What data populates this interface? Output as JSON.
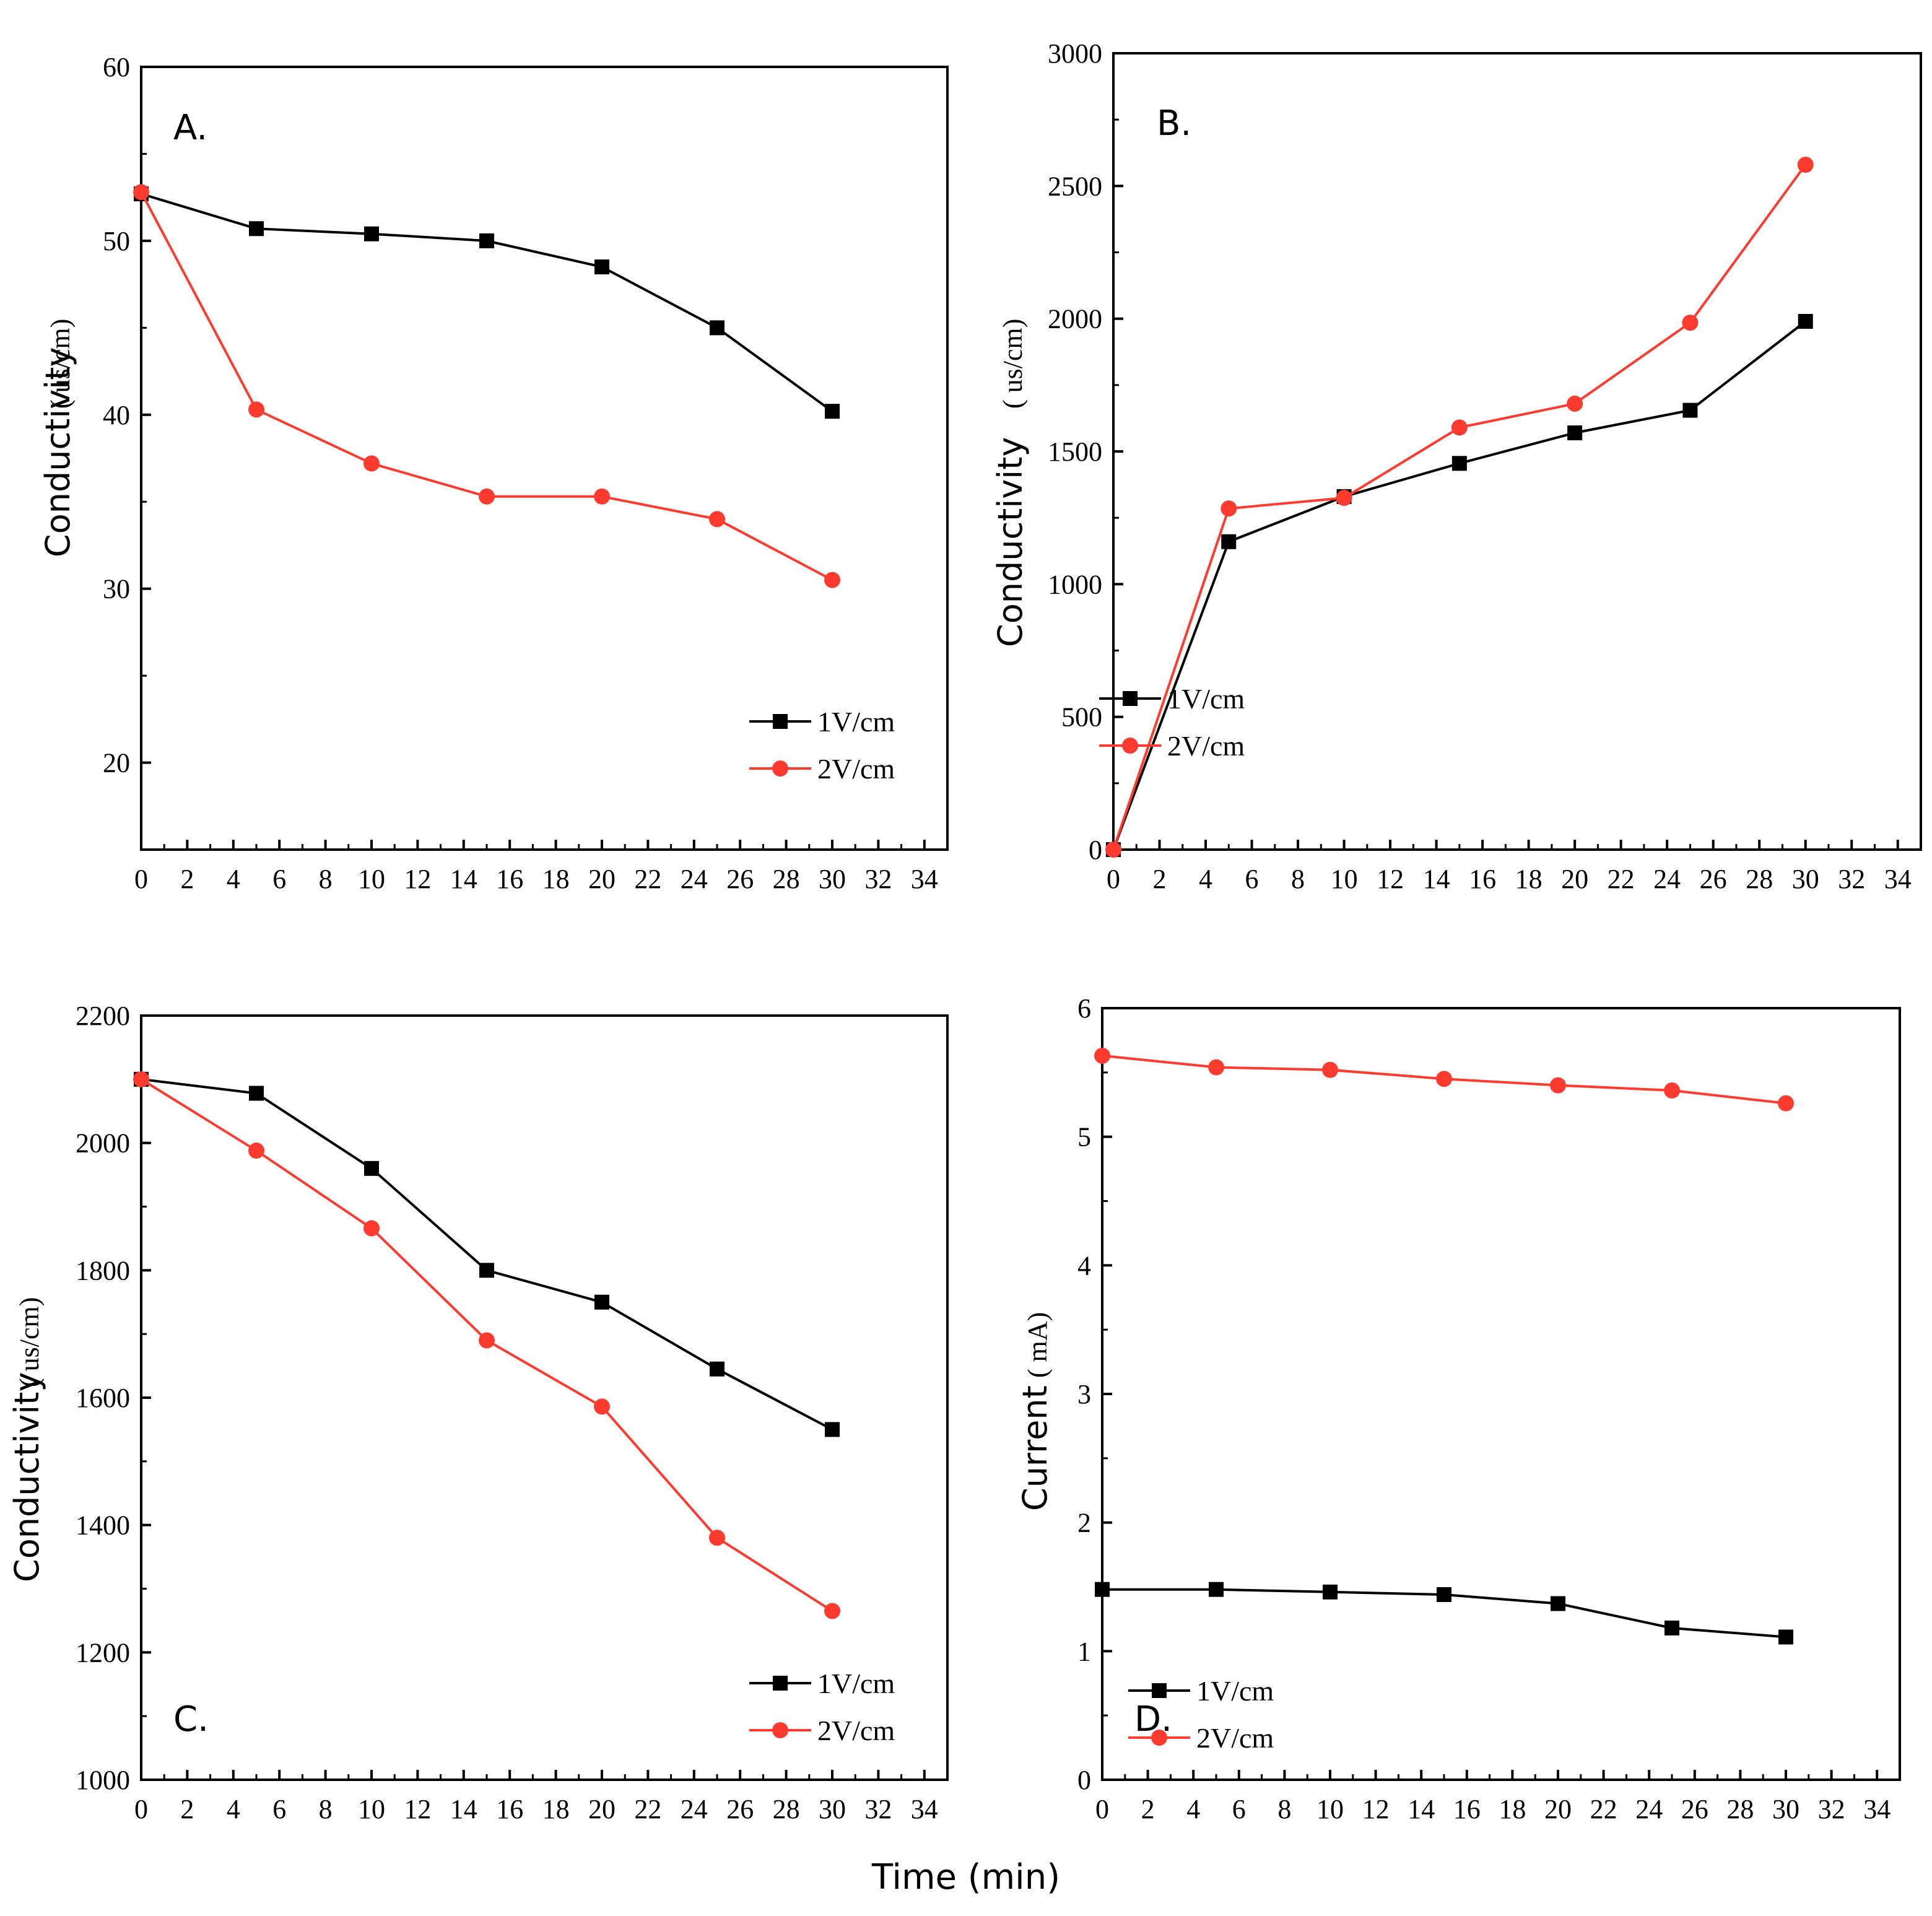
{
  "colors": {
    "series_1v": "#000000",
    "series_2v": "#ff3b30",
    "axis": "#000000"
  },
  "shared_xlabel": "Time (min)",
  "chart_data": [
    {
      "id": "A",
      "type": "line",
      "panel_label": "A.",
      "ylabel": "Conductivity",
      "yunit": "( us/cm)",
      "xlim": [
        0,
        35
      ],
      "ylim": [
        15,
        60
      ],
      "xticks": [
        0,
        2,
        4,
        6,
        8,
        10,
        12,
        14,
        16,
        18,
        20,
        22,
        24,
        26,
        28,
        30,
        32,
        34
      ],
      "yticks": [
        20,
        30,
        40,
        50,
        60
      ],
      "legend_position": "bottom-right",
      "series": [
        {
          "name": "1V/cm",
          "marker": "square",
          "color": "#000000",
          "x": [
            0,
            5,
            10,
            15,
            20,
            25,
            30
          ],
          "y": [
            52.7,
            50.7,
            50.4,
            50.0,
            48.5,
            45.0,
            40.2
          ]
        },
        {
          "name": "2V/cm",
          "marker": "circle",
          "color": "#ff3b30",
          "x": [
            0,
            5,
            10,
            15,
            20,
            25,
            30
          ],
          "y": [
            52.8,
            40.3,
            37.2,
            35.3,
            35.3,
            34.0,
            30.5
          ]
        }
      ]
    },
    {
      "id": "B",
      "type": "line",
      "panel_label": "B.",
      "ylabel": "Conductivity",
      "yunit": "( us/cm)",
      "xlim": [
        0,
        35
      ],
      "ylim": [
        0,
        3000
      ],
      "xticks": [
        0,
        2,
        4,
        6,
        8,
        10,
        12,
        14,
        16,
        18,
        20,
        22,
        24,
        26,
        28,
        30,
        32,
        34
      ],
      "yticks": [
        0,
        500,
        1000,
        1500,
        2000,
        2500,
        3000
      ],
      "legend_position": "middle-right",
      "series": [
        {
          "name": "1V/cm",
          "marker": "square",
          "color": "#000000",
          "x": [
            0,
            5,
            10,
            15,
            20,
            25,
            30
          ],
          "y": [
            0,
            1160,
            1330,
            1455,
            1570,
            1655,
            1990
          ]
        },
        {
          "name": "2V/cm",
          "marker": "circle",
          "color": "#ff3b30",
          "x": [
            0,
            5,
            10,
            15,
            20,
            25,
            30
          ],
          "y": [
            0,
            1285,
            1325,
            1590,
            1680,
            1985,
            2580
          ]
        }
      ]
    },
    {
      "id": "C",
      "type": "line",
      "panel_label": "C.",
      "ylabel": "Conductivity",
      "yunit": "( us/cm)",
      "xlim": [
        0,
        35
      ],
      "ylim": [
        1000,
        2200
      ],
      "xticks": [
        0,
        2,
        4,
        6,
        8,
        10,
        12,
        14,
        16,
        18,
        20,
        22,
        24,
        26,
        28,
        30,
        32,
        34
      ],
      "yticks": [
        1000,
        1200,
        1400,
        1600,
        1800,
        2000,
        2200
      ],
      "legend_position": "bottom-right",
      "series": [
        {
          "name": "1V/cm",
          "marker": "square",
          "color": "#000000",
          "x": [
            0,
            5,
            10,
            15,
            20,
            25,
            30
          ],
          "y": [
            2100,
            2078,
            1960,
            1800,
            1750,
            1645,
            1550
          ]
        },
        {
          "name": "2V/cm",
          "marker": "circle",
          "color": "#ff3b30",
          "x": [
            0,
            5,
            10,
            15,
            20,
            25,
            30
          ],
          "y": [
            2100,
            1988,
            1866,
            1690,
            1586,
            1380,
            1265
          ]
        }
      ]
    },
    {
      "id": "D",
      "type": "line",
      "panel_label": "D.",
      "ylabel": "Current",
      "yunit": "( mA)",
      "xlim": [
        0,
        35
      ],
      "ylim": [
        0,
        6
      ],
      "xticks": [
        0,
        2,
        4,
        6,
        8,
        10,
        12,
        14,
        16,
        18,
        20,
        22,
        24,
        26,
        28,
        30,
        32,
        34
      ],
      "yticks": [
        0,
        1,
        2,
        3,
        4,
        5,
        6
      ],
      "legend_position": "bottom-right",
      "series": [
        {
          "name": "1V/cm",
          "marker": "square",
          "color": "#000000",
          "x": [
            0,
            5,
            10,
            15,
            20,
            25,
            30
          ],
          "y": [
            1.48,
            1.48,
            1.46,
            1.44,
            1.37,
            1.18,
            1.11
          ]
        },
        {
          "name": "2V/cm",
          "marker": "circle",
          "color": "#ff3b30",
          "x": [
            0,
            5,
            10,
            15,
            20,
            25,
            30
          ],
          "y": [
            5.63,
            5.54,
            5.52,
            5.45,
            5.4,
            5.36,
            5.26
          ]
        }
      ]
    }
  ]
}
